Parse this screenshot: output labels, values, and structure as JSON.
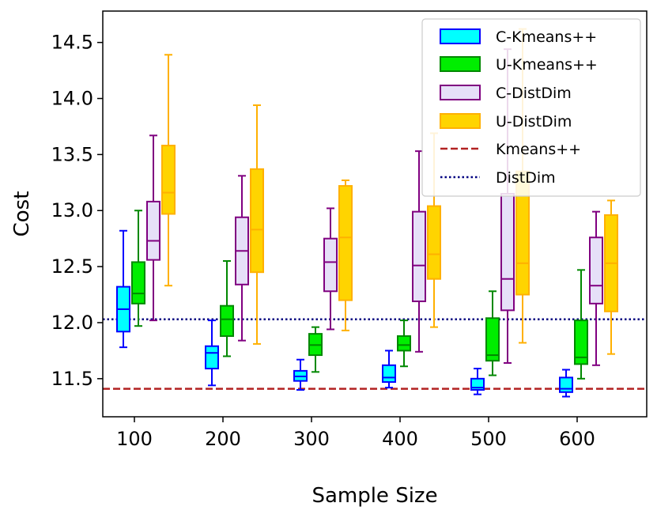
{
  "chart_data": {
    "type": "box",
    "xlabel": "Sample Size",
    "ylabel": "Cost",
    "categories": [
      "100",
      "200",
      "300",
      "400",
      "500",
      "600"
    ],
    "ylim": [
      11.16,
      14.78
    ],
    "yticks": [
      11.5,
      12.0,
      12.5,
      13.0,
      13.5,
      14.0,
      14.5
    ],
    "ytick_labels": [
      "11.5",
      "12.0",
      "12.5",
      "13.0",
      "13.5",
      "14.0",
      "14.5"
    ],
    "series": [
      {
        "name": "C-Kmeans++",
        "fill": "#00ffff",
        "stroke": "#0000ff",
        "boxes": [
          {
            "whislo": 11.78,
            "q1": 11.92,
            "med": 12.12,
            "q3": 12.32,
            "whishi": 12.82
          },
          {
            "whislo": 11.44,
            "q1": 11.59,
            "med": 11.73,
            "q3": 11.79,
            "whishi": 12.02
          },
          {
            "whislo": 11.4,
            "q1": 11.48,
            "med": 11.52,
            "q3": 11.57,
            "whishi": 11.67
          },
          {
            "whislo": 11.42,
            "q1": 11.47,
            "med": 11.51,
            "q3": 11.62,
            "whishi": 11.75
          },
          {
            "whislo": 11.36,
            "q1": 11.4,
            "med": 11.42,
            "q3": 11.5,
            "whishi": 11.59
          },
          {
            "whislo": 11.34,
            "q1": 11.38,
            "med": 11.41,
            "q3": 11.51,
            "whishi": 11.58
          }
        ]
      },
      {
        "name": "U-Kmeans++",
        "fill": "#00ee00",
        "stroke": "#008800",
        "boxes": [
          {
            "whislo": 11.97,
            "q1": 12.17,
            "med": 12.26,
            "q3": 12.54,
            "whishi": 13.0
          },
          {
            "whislo": 11.7,
            "q1": 11.88,
            "med": 12.03,
            "q3": 12.15,
            "whishi": 12.55
          },
          {
            "whislo": 11.56,
            "q1": 11.71,
            "med": 11.8,
            "q3": 11.9,
            "whishi": 11.96
          },
          {
            "whislo": 11.61,
            "q1": 11.75,
            "med": 11.8,
            "q3": 11.88,
            "whishi": 12.02
          },
          {
            "whislo": 11.53,
            "q1": 11.66,
            "med": 11.71,
            "q3": 12.04,
            "whishi": 12.28
          },
          {
            "whislo": 11.5,
            "q1": 11.63,
            "med": 11.69,
            "q3": 12.02,
            "whishi": 12.47
          }
        ]
      },
      {
        "name": "C-DistDim",
        "fill": "#e6e0f8",
        "stroke": "#800080",
        "boxes": [
          {
            "whislo": 12.02,
            "q1": 12.56,
            "med": 12.73,
            "q3": 13.08,
            "whishi": 13.67
          },
          {
            "whislo": 11.84,
            "q1": 12.34,
            "med": 12.64,
            "q3": 12.94,
            "whishi": 13.31
          },
          {
            "whislo": 11.94,
            "q1": 12.28,
            "med": 12.54,
            "q3": 12.75,
            "whishi": 13.02
          },
          {
            "whislo": 11.74,
            "q1": 12.19,
            "med": 12.51,
            "q3": 12.99,
            "whishi": 13.53
          },
          {
            "whislo": 11.64,
            "q1": 12.11,
            "med": 12.39,
            "q3": 13.15,
            "whishi": 14.44
          },
          {
            "whislo": 11.62,
            "q1": 12.17,
            "med": 12.33,
            "q3": 12.76,
            "whishi": 12.99
          }
        ]
      },
      {
        "name": "U-DistDim",
        "fill": "#ffd400",
        "stroke": "#ffb000",
        "boxes": [
          {
            "whislo": 12.33,
            "q1": 12.97,
            "med": 13.16,
            "q3": 13.58,
            "whishi": 14.39
          },
          {
            "whislo": 11.81,
            "q1": 12.45,
            "med": 12.83,
            "q3": 13.37,
            "whishi": 13.94
          },
          {
            "whislo": 11.93,
            "q1": 12.2,
            "med": 12.76,
            "q3": 13.22,
            "whishi": 13.27
          },
          {
            "whislo": 11.96,
            "q1": 12.39,
            "med": 12.61,
            "q3": 13.04,
            "whishi": 13.69
          },
          {
            "whislo": 11.82,
            "q1": 12.25,
            "med": 12.53,
            "q3": 13.35,
            "whishi": 14.62
          },
          {
            "whislo": 11.72,
            "q1": 12.1,
            "med": 12.53,
            "q3": 12.96,
            "whishi": 13.09
          }
        ]
      }
    ],
    "reference_lines": [
      {
        "name": "Kmeans++",
        "y": 11.41,
        "color": "#b22222",
        "style": "dashed"
      },
      {
        "name": "DistDim",
        "y": 12.03,
        "color": "#000080",
        "style": "dotted"
      }
    ],
    "legend": {
      "position": "top-right",
      "entries": [
        "C-Kmeans++",
        "U-Kmeans++",
        "C-DistDim",
        "U-DistDim",
        "Kmeans++",
        "DistDim"
      ]
    }
  }
}
